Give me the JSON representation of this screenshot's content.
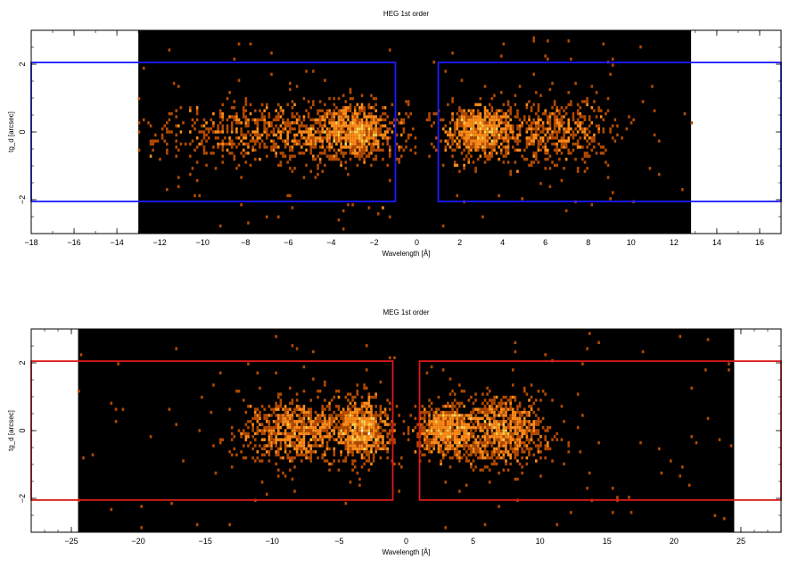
{
  "chart_data": [
    {
      "type": "heatmap",
      "title": "HEG 1st order",
      "xlabel": "Wavelength [Å]",
      "ylabel": "tg_d [arcsec]",
      "xlim": [
        -18,
        17
      ],
      "ylim": [
        -3,
        3
      ],
      "xticks": [
        -18,
        -16,
        -14,
        -12,
        -10,
        -8,
        -6,
        -4,
        -2,
        0,
        2,
        4,
        6,
        8,
        10,
        12,
        14,
        16
      ],
      "xtick_labels": [
        "−18",
        "−16",
        "−14",
        "−12",
        "−10",
        "−8",
        "−6",
        "−4",
        "−2",
        "0",
        "2",
        "4",
        "6",
        "8",
        "10",
        "12",
        "14",
        "16"
      ],
      "yticks": [
        -2,
        0,
        2
      ],
      "ytick_labels": [
        "−2",
        "0",
        "2"
      ],
      "data_extent": [
        -13,
        12.8
      ],
      "background_color": "#000000",
      "colormap": [
        "#b34a00",
        "#ff8c1a",
        "#ffd04d",
        "#ffffff"
      ],
      "clusters": [
        {
          "x": -6.5,
          "sx": 2.6,
          "sy": 0.45,
          "n": 260
        },
        {
          "x": -2.8,
          "sx": 0.9,
          "sy": 0.4,
          "n": 230
        },
        {
          "x": 3.0,
          "sx": 0.9,
          "sy": 0.4,
          "n": 250
        },
        {
          "x": 6.6,
          "sx": 1.3,
          "sy": 0.45,
          "n": 150
        }
      ],
      "scatter_range": [
        [
          -13,
          -0.5
        ],
        [
          0.5,
          12.8
        ]
      ],
      "regions": [
        {
          "x0": -18,
          "x1": -1.0,
          "y0": -2.05,
          "y1": 2.05,
          "color": "#1a1aff"
        },
        {
          "x0": 1.0,
          "x1": 17,
          "y0": -2.05,
          "y1": 2.05,
          "color": "#1a1aff"
        }
      ]
    },
    {
      "type": "heatmap",
      "title": "MEG 1st order",
      "xlabel": "Wavelength [Å]",
      "ylabel": "tg_d [arcsec]",
      "xlim": [
        -28,
        28
      ],
      "ylim": [
        -3,
        3
      ],
      "xticks": [
        -25,
        -20,
        -15,
        -10,
        -5,
        0,
        5,
        10,
        15,
        20,
        25
      ],
      "xtick_labels": [
        "−25",
        "−20",
        "−15",
        "−10",
        "−5",
        "0",
        "5",
        "10",
        "15",
        "20",
        "25"
      ],
      "yticks": [
        -2,
        0,
        2
      ],
      "ytick_labels": [
        "−2",
        "0",
        "2"
      ],
      "data_extent": [
        -24.5,
        24.5
      ],
      "background_color": "#000000",
      "colormap": [
        "#b34a00",
        "#ff8c1a",
        "#ffd04d",
        "#ffffff"
      ],
      "clusters": [
        {
          "x": -8.0,
          "sx": 2.2,
          "sy": 0.45,
          "n": 280
        },
        {
          "x": -3.2,
          "sx": 1.0,
          "sy": 0.45,
          "n": 220
        },
        {
          "x": 3.0,
          "sx": 1.3,
          "sy": 0.4,
          "n": 220
        },
        {
          "x": 7.2,
          "sx": 1.6,
          "sy": 0.5,
          "n": 260
        }
      ],
      "scatter_range": [
        [
          -24.5,
          -0.5
        ],
        [
          0.5,
          24.5
        ]
      ],
      "regions": [
        {
          "x0": -28,
          "x1": -1.0,
          "y0": -2.05,
          "y1": 2.05,
          "color": "#dd1a1a"
        },
        {
          "x0": 1.0,
          "x1": 28,
          "y0": -2.05,
          "y1": 2.05,
          "color": "#dd1a1a"
        }
      ]
    }
  ]
}
